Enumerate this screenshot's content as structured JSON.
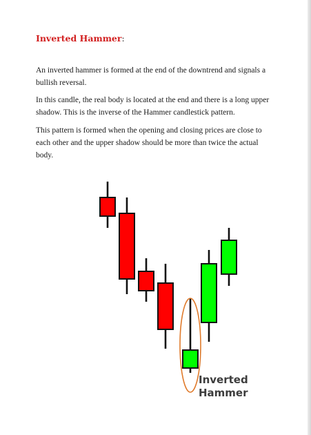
{
  "document": {
    "heading": "Inverted Hammer",
    "heading_suffix": ":",
    "paragraphs": [
      "An inverted hammer is formed at the end of the downtrend and signals a bullish reversal.",
      "In this candle, the real body is located at the end and there is a long upper shadow. This is the inverse of the Hammer candlestick pattern.",
      "This pattern is formed when the opening and closing prices are close to each other and the upper shadow should be more than twice the actual body."
    ]
  },
  "figure": {
    "label_line1": "Inverted",
    "label_line2": "Hammer",
    "colors": {
      "bearish": "#ff0000",
      "bullish": "#00ff00",
      "wick": "#111111",
      "highlight": "#e07b2c"
    },
    "candles": [
      {
        "trend": "bearish"
      },
      {
        "trend": "bearish"
      },
      {
        "trend": "bearish"
      },
      {
        "trend": "bearish"
      },
      {
        "trend": "bullish",
        "pattern": "inverted-hammer"
      },
      {
        "trend": "bullish"
      },
      {
        "trend": "bullish"
      }
    ]
  }
}
